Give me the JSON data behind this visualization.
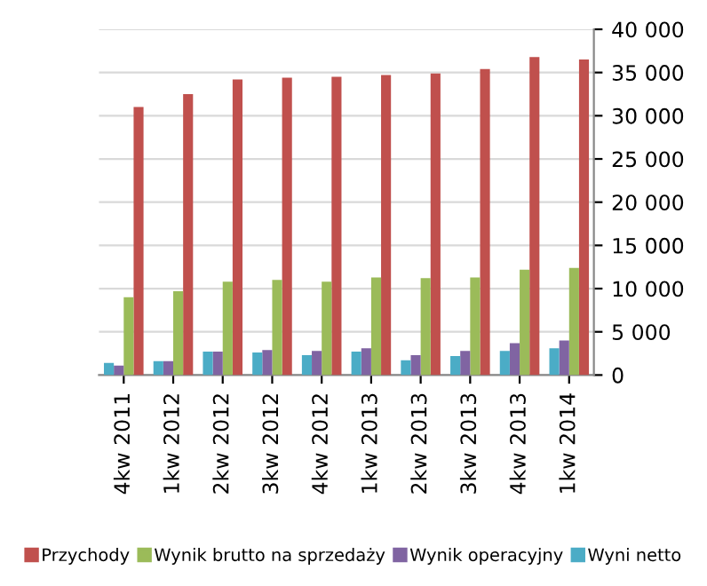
{
  "chart_data": {
    "type": "bar",
    "categories": [
      "4kw 2011",
      "1kw 2012",
      "2kw 2012",
      "3kw 2012",
      "4kw 2012",
      "1kw 2013",
      "2kw 2013",
      "3kw 2013",
      "4kw 2013",
      "1kw 2014"
    ],
    "series": [
      {
        "name": "Przychody",
        "color": "#c0504d",
        "values": [
          31000,
          32500,
          34200,
          34400,
          34500,
          34700,
          34900,
          35400,
          36800,
          36500
        ]
      },
      {
        "name": "Wynik brutto na sprzedaży",
        "color": "#9bbb59",
        "values": [
          9000,
          9700,
          10800,
          11000,
          10800,
          11300,
          11200,
          11300,
          12200,
          12400
        ]
      },
      {
        "name": "Wynik operacyjny",
        "color": "#8064a2",
        "values": [
          1100,
          1600,
          2700,
          2900,
          2800,
          3100,
          2300,
          2800,
          3700,
          4000
        ]
      },
      {
        "name": "Wyni netto",
        "color": "#4bacc6",
        "values": [
          1400,
          1600,
          2700,
          2600,
          2300,
          2700,
          1700,
          2200,
          2800,
          3100
        ]
      }
    ],
    "ylim": [
      0,
      40000
    ],
    "yticks": [
      {
        "value": 0,
        "label": "0"
      },
      {
        "value": 5000,
        "label": "5 000"
      },
      {
        "value": 10000,
        "label": "10 000"
      },
      {
        "value": 15000,
        "label": "15 000"
      },
      {
        "value": 20000,
        "label": "20 000"
      },
      {
        "value": 25000,
        "label": "25 000"
      },
      {
        "value": 30000,
        "label": "30 000"
      },
      {
        "value": 35000,
        "label": "35 000"
      },
      {
        "value": 40000,
        "label": "40 000"
      }
    ],
    "grid": "y",
    "legend": "bottom"
  }
}
